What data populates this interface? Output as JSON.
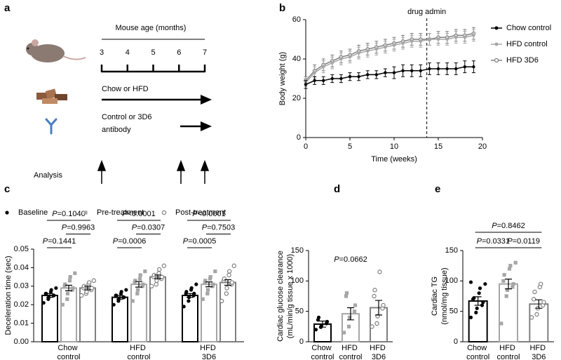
{
  "panel_labels": [
    "a",
    "b",
    "c",
    "d",
    "e"
  ],
  "diagram": {
    "title": "Mouse age (months)",
    "ticks": [
      "3",
      "4",
      "5",
      "6",
      "7"
    ],
    "diet_label": "Chow or HFD",
    "antibody_label": [
      "Control or 3D6",
      "antibody"
    ],
    "analysis_label": "Analysis"
  },
  "chart_data": [
    {
      "type": "line",
      "xlabel": "Time (weeks)",
      "ylabel": "Body weight (g)",
      "x": [
        0,
        1,
        2,
        3,
        4,
        5,
        6,
        7,
        8,
        9,
        10,
        11,
        12,
        13,
        14,
        15,
        16,
        17,
        18,
        19
      ],
      "xlim": [
        0,
        20
      ],
      "xticks": [
        0,
        5,
        10,
        15,
        20
      ],
      "ylim": [
        0,
        60
      ],
      "yticks": [
        0,
        20,
        40,
        60
      ],
      "vline": {
        "x": 13.7,
        "label": "drug admin"
      },
      "series": [
        {
          "name": "Chow control",
          "color": "#000000",
          "marker": "circle",
          "values": [
            27,
            29,
            29,
            30,
            30,
            31,
            31,
            32,
            32,
            33,
            33,
            34,
            34,
            34,
            35,
            35,
            35,
            35,
            36,
            36
          ],
          "errors": [
            2,
            2,
            2,
            2,
            2,
            2,
            2,
            2,
            2,
            2,
            3,
            3,
            3,
            3,
            3,
            3,
            3,
            3,
            3,
            3
          ]
        },
        {
          "name": "HFD control",
          "color": "#a6a6a6",
          "marker": "circle",
          "values": [
            28,
            33,
            36,
            38,
            40,
            41,
            43,
            44,
            45,
            46,
            47,
            48,
            49,
            49,
            50,
            50,
            50,
            51,
            51,
            52
          ],
          "errors": [
            2,
            3,
            3,
            3,
            3,
            3,
            3,
            3,
            3,
            3,
            3,
            3,
            3,
            3,
            3,
            3,
            3,
            3,
            3,
            3
          ]
        },
        {
          "name": "HFD 3D6",
          "color": "#7f7f7f",
          "marker": "open-circle",
          "values": [
            29,
            34,
            37,
            39,
            41,
            42,
            44,
            45,
            46,
            47,
            48,
            49,
            50,
            50,
            50,
            51,
            51,
            52,
            52,
            53
          ],
          "errors": [
            2,
            3,
            3,
            3,
            3,
            3,
            3,
            3,
            3,
            3,
            3,
            3,
            3,
            3,
            3,
            3,
            3,
            3,
            3,
            3
          ]
        }
      ]
    },
    {
      "type": "bar",
      "ylabel": "Deceleration time (sec)",
      "categories": [
        "Chow control",
        "HFD control",
        "HFD 3D6"
      ],
      "ylim": [
        0,
        0.05
      ],
      "yticks": [
        {
          "value": 0,
          "label": "0.00"
        },
        0.01,
        0.02,
        0.03,
        0.04,
        0.05
      ],
      "series": [
        {
          "name": "Baseline",
          "color": "#000000",
          "marker": "circle",
          "values": [
            0.025,
            0.024,
            0.025
          ],
          "errors": [
            0.001,
            0.001,
            0.001
          ],
          "points": [
            [
              0.021,
              0.023,
              0.024,
              0.025,
              0.025,
              0.026,
              0.026,
              0.027,
              0.028,
              0.029
            ],
            [
              0.02,
              0.022,
              0.023,
              0.024,
              0.024,
              0.025,
              0.025,
              0.026,
              0.027,
              0.028
            ],
            [
              0.019,
              0.022,
              0.024,
              0.025,
              0.026,
              0.026,
              0.027,
              0.028,
              0.029,
              0.031
            ]
          ]
        },
        {
          "name": "Pre-treatment",
          "color": "#a6a6a6",
          "marker": "square",
          "values": [
            0.029,
            0.031,
            0.031
          ],
          "errors": [
            0.0015,
            0.0015,
            0.0013
          ],
          "points": [
            [
              0.02,
              0.023,
              0.026,
              0.028,
              0.029,
              0.03,
              0.031,
              0.033,
              0.035,
              0.037
            ],
            [
              0.022,
              0.026,
              0.028,
              0.03,
              0.031,
              0.032,
              0.033,
              0.034,
              0.036,
              0.038
            ],
            [
              0.023,
              0.026,
              0.028,
              0.03,
              0.031,
              0.032,
              0.033,
              0.034,
              0.035,
              0.038
            ]
          ]
        },
        {
          "name": "Post-treatment",
          "color": "#7f7f7f",
          "marker": "open-circle",
          "values": [
            0.029,
            0.035,
            0.032
          ],
          "errors": [
            0.001,
            0.001,
            0.0015
          ],
          "points": [
            [
              0.025,
              0.026,
              0.027,
              0.028,
              0.029,
              0.029,
              0.03,
              0.031,
              0.032,
              0.033
            ],
            [
              0.03,
              0.031,
              0.033,
              0.034,
              0.035,
              0.035,
              0.036,
              0.037,
              0.039,
              0.041
            ],
            [
              0.022,
              0.026,
              0.029,
              0.031,
              0.032,
              0.033,
              0.034,
              0.036,
              0.038,
              0.041
            ]
          ]
        }
      ],
      "comparisons": [
        [
          {
            "from": 0,
            "to": 1,
            "label": "P=0.1441"
          },
          {
            "from": 1,
            "to": 2,
            "label": "P=0.9963"
          },
          {
            "from": 0,
            "to": 2,
            "label": "P=0.1040"
          }
        ],
        [
          {
            "from": 0,
            "to": 1,
            "label": "P=0.0006"
          },
          {
            "from": 1,
            "to": 2,
            "label": "P=0.0307"
          },
          {
            "from": 0,
            "to": 2,
            "label": "P<0.0001"
          }
        ],
        [
          {
            "from": 0,
            "to": 1,
            "label": "P=0.0005"
          },
          {
            "from": 1,
            "to": 2,
            "label": "P=0.7503"
          },
          {
            "from": 0,
            "to": 2,
            "label": "P<0.0001"
          }
        ]
      ]
    },
    {
      "type": "bar",
      "ylabel": [
        "Cardiac glucose clearance",
        "(mL/min/g tissue x 1000)"
      ],
      "categories": [
        "Chow control",
        "HFD control",
        "HFD 3D6"
      ],
      "colors": [
        "#000000",
        "#a6a6a6",
        "#7f7f7f"
      ],
      "markers": [
        "circle",
        "square",
        "open-circle"
      ],
      "ylim": [
        0,
        150
      ],
      "yticks": [
        0,
        50,
        100,
        150
      ],
      "values": [
        29,
        46,
        56
      ],
      "errors": [
        5,
        10,
        12
      ],
      "points": [
        [
          20,
          24,
          27,
          30,
          33,
          36,
          40
        ],
        [
          15,
          25,
          40,
          50,
          60,
          75,
          80
        ],
        [
          25,
          30,
          42,
          55,
          60,
          75,
          85,
          115
        ]
      ],
      "annotation": "P=0.0662"
    },
    {
      "type": "bar",
      "ylabel": [
        "Cardiac TG",
        "(nmol/mg tissue)"
      ],
      "categories": [
        "Chow control",
        "HFD control",
        "HFD 3D6"
      ],
      "colors": [
        "#000000",
        "#a6a6a6",
        "#7f7f7f"
      ],
      "markers": [
        "circle",
        "square",
        "open-circle"
      ],
      "ylim": [
        0,
        150
      ],
      "yticks": [
        0,
        50,
        100,
        150
      ],
      "values": [
        67,
        95,
        62
      ],
      "errors": [
        7,
        8,
        7
      ],
      "points": [
        [
          40,
          48,
          55,
          60,
          65,
          70,
          72,
          80,
          88,
          95,
          98
        ],
        [
          30,
          75,
          85,
          90,
          95,
          100,
          110,
          120,
          125,
          130
        ],
        [
          40,
          45,
          55,
          60,
          65,
          70,
          82,
          90,
          95
        ]
      ],
      "comparisons": [
        {
          "from": 0,
          "to": 1,
          "label": "P=0.0331"
        },
        {
          "from": 1,
          "to": 2,
          "label": "P=0.0119"
        },
        {
          "from": 0,
          "to": 2,
          "label": "P=0.8462"
        }
      ]
    }
  ]
}
